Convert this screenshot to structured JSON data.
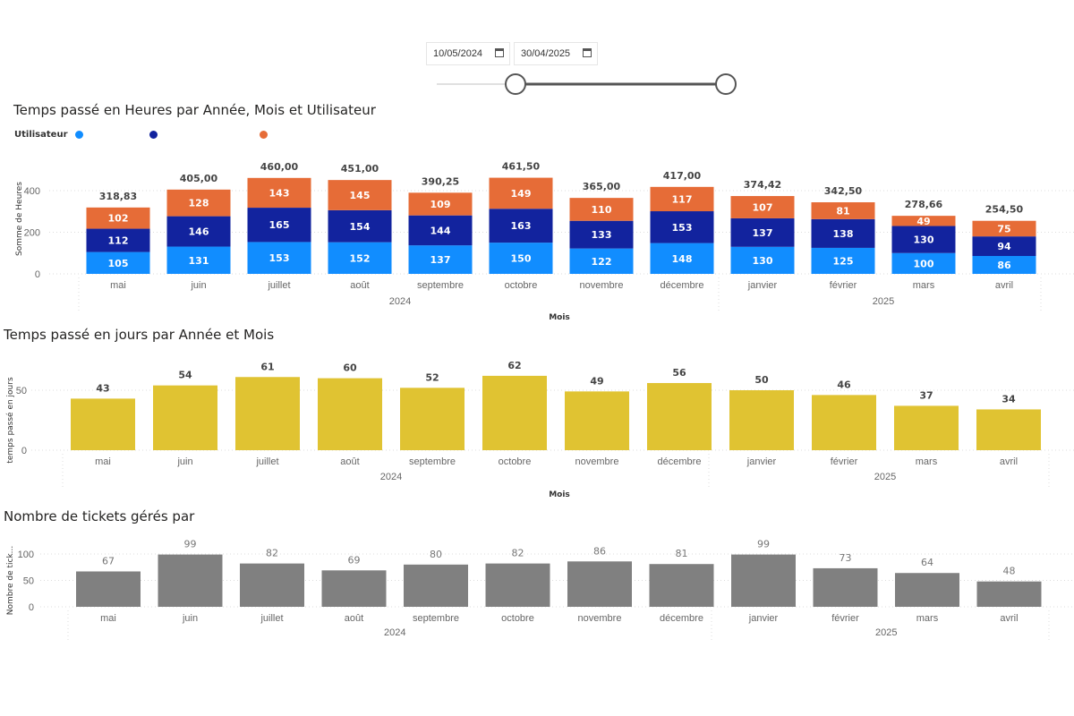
{
  "slicer": {
    "start_date": "10/05/2024",
    "end_date": "30/04/2025",
    "calendar_icon": "calendar-icon",
    "range_position": [
      0.32,
      1.0
    ]
  },
  "colors": {
    "series_light_blue": "#118DFF",
    "series_dark_blue": "#12239E",
    "series_orange": "#E66C37",
    "yellow": "#E0C332",
    "gray": "#808080"
  },
  "legend": {
    "title": "Utilisateur"
  },
  "chart_data": [
    {
      "type": "bar",
      "stacked": true,
      "title": "Temps passé en Heures par Année, Mois et Utilisateur",
      "xlabel": "Mois",
      "ylabel": "Somme de Heures",
      "ylim": [
        0,
        480
      ],
      "yticks": [
        "0",
        "200",
        "400"
      ],
      "grid": true,
      "legend_position": "top-left",
      "categories": [
        "mai",
        "juin",
        "juillet",
        "août",
        "septembre",
        "octobre",
        "novembre",
        "décembre",
        "janvier",
        "février",
        "mars",
        "avril"
      ],
      "years": [
        {
          "label": "2024",
          "count": 8
        },
        {
          "label": "2025",
          "count": 4
        }
      ],
      "series": [
        {
          "color": "#118DFF",
          "values": [
            105,
            131,
            153,
            152,
            137,
            150,
            122,
            148,
            130,
            125,
            100,
            86
          ]
        },
        {
          "color": "#12239E",
          "values": [
            112,
            146,
            165,
            154,
            144,
            163,
            133,
            153,
            137,
            138,
            130,
            94
          ]
        },
        {
          "color": "#E66C37",
          "values": [
            102,
            128,
            143,
            145,
            109,
            149,
            110,
            117,
            107,
            81,
            49,
            75
          ]
        }
      ],
      "totals": [
        "318,83",
        "405,00",
        "460,00",
        "451,00",
        "390,25",
        "461,50",
        "365,00",
        "417,00",
        "374,42",
        "342,50",
        "278,66",
        "254,50"
      ]
    },
    {
      "type": "bar",
      "title": "Temps passé en jours par Année et Mois",
      "xlabel": "Mois",
      "ylabel": "temps passé en jours",
      "ylim": [
        0,
        70
      ],
      "yticks": [
        "0",
        "50"
      ],
      "grid": true,
      "color": "#E0C332",
      "categories": [
        "mai",
        "juin",
        "juillet",
        "août",
        "septembre",
        "octobre",
        "novembre",
        "décembre",
        "janvier",
        "février",
        "mars",
        "avril"
      ],
      "years": [
        {
          "label": "2024",
          "count": 8
        },
        {
          "label": "2025",
          "count": 4
        }
      ],
      "values": [
        43,
        54,
        61,
        60,
        52,
        62,
        49,
        56,
        50,
        46,
        37,
        34
      ]
    },
    {
      "type": "bar",
      "title": "Nombre de tickets gérés par",
      "xlabel": "",
      "ylabel": "Nombre de tick...",
      "ylim": [
        0,
        110
      ],
      "yticks": [
        "0",
        "50",
        "100"
      ],
      "grid": true,
      "color": "#808080",
      "categories": [
        "mai",
        "juin",
        "juillet",
        "août",
        "septembre",
        "octobre",
        "novembre",
        "décembre",
        "janvier",
        "février",
        "mars",
        "avril"
      ],
      "years": [
        {
          "label": "2024",
          "count": 8
        },
        {
          "label": "2025",
          "count": 4
        }
      ],
      "values": [
        67,
        99,
        82,
        69,
        80,
        82,
        86,
        81,
        99,
        73,
        64,
        48
      ]
    }
  ]
}
